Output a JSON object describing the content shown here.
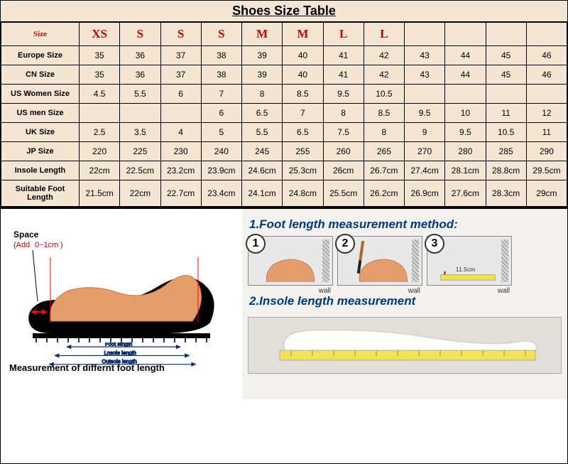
{
  "title": "Shoes Size Table",
  "header": {
    "size_label": "Size",
    "codes": [
      "XS",
      "S",
      "S",
      "S",
      "M",
      "M",
      "L",
      "L",
      "",
      "",
      "",
      ""
    ]
  },
  "rows": [
    {
      "label": "Europe Size",
      "cells": [
        "35",
        "36",
        "37",
        "38",
        "39",
        "40",
        "41",
        "42",
        "43",
        "44",
        "45",
        "46"
      ]
    },
    {
      "label": "CN Size",
      "cells": [
        "35",
        "36",
        "37",
        "38",
        "39",
        "40",
        "41",
        "42",
        "43",
        "44",
        "45",
        "46"
      ]
    },
    {
      "label": "US Women Size",
      "cells": [
        "4.5",
        "5.5",
        "6",
        "7",
        "8",
        "8.5",
        "9.5",
        "10.5",
        "",
        "",
        "",
        ""
      ]
    },
    {
      "label": "US men Size",
      "cells": [
        "",
        "",
        "",
        "6",
        "6.5",
        "7",
        "8",
        "8.5",
        "9.5",
        "10",
        "11",
        "12"
      ]
    },
    {
      "label": "UK Size",
      "cells": [
        "2.5",
        "3.5",
        "4",
        "5",
        "5.5",
        "6.5",
        "7.5",
        "8",
        "9",
        "9.5",
        "10.5",
        "11"
      ]
    },
    {
      "label": "JP Size",
      "cells": [
        "220",
        "225",
        "230",
        "240",
        "245",
        "255",
        "260",
        "265",
        "270",
        "280",
        "285",
        "290"
      ]
    },
    {
      "label": "Insole Length",
      "cells": [
        "22cm",
        "22.5cm",
        "23.2cm",
        "23.9cm",
        "24.6cm",
        "25.3cm",
        "26cm",
        "26.7cm",
        "27.4cm",
        "28.1cm",
        "28.8cm",
        "29.5cm"
      ]
    },
    {
      "label": "Suitable Foot Length",
      "cells": [
        "21.5cm",
        "22cm",
        "22.7cm",
        "23.4cm",
        "24.1cm",
        "24.8cm",
        "25.5cm",
        "26.2cm",
        "26.9cm",
        "27.6cm",
        "28.3cm",
        "29cm"
      ]
    }
  ],
  "diagram": {
    "space_label": "Space",
    "space_add": "(Add0~1cm)",
    "foot_length": "Foot length",
    "insole_length": "Lnsole length",
    "outsole_length": "Outsole length",
    "caption": "Measurement of differnt foot length",
    "colors": {
      "sole": "#000000",
      "foot": "#e69d6c",
      "highlight": "#ff0000",
      "arrows": "#0b2f66"
    }
  },
  "instructions": {
    "sec1": "1.Foot length measurement method:",
    "sec2": "2.Insole length measurement",
    "wall_label": "wall",
    "ruler_value": "11.5cm",
    "colors": {
      "title": "#003a7a",
      "panel_bg": "#f4f2ef",
      "step_bg": "#e8e8e8",
      "foot": "#e69d6c",
      "tape": "#f2e24a"
    }
  },
  "table_style": {
    "bg": "#f5e6d3",
    "border": "#000000",
    "header_color": "#cc0000",
    "font_size_hdr": 18,
    "font_size_cell": 12
  }
}
